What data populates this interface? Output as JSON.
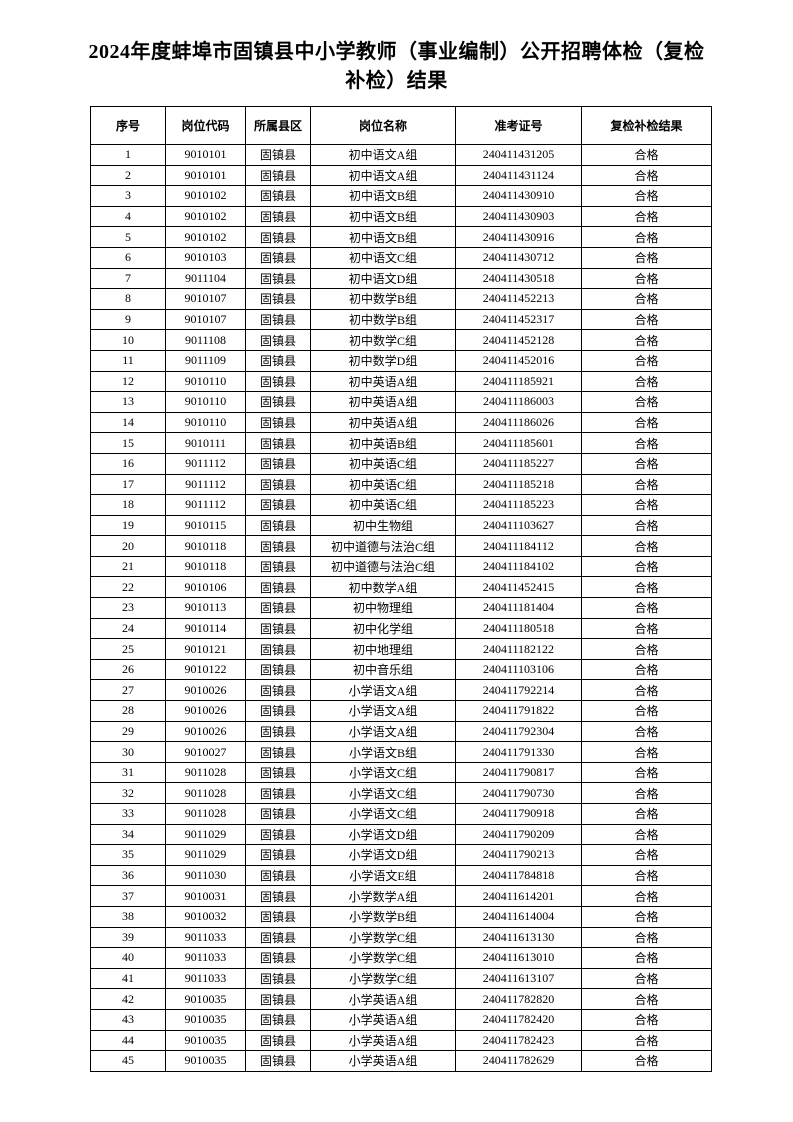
{
  "colors": {
    "background": "#ffffff",
    "text": "#000000",
    "table_border": "#000000"
  },
  "document": {
    "title_line1": "2024年度蚌埠市固镇县中小学教师（事业编制）公开招聘体检（复检",
    "title_line2": "补检）结果"
  },
  "table": {
    "headers": [
      "序号",
      "岗位代码",
      "所属县区",
      "岗位名称",
      "准考证号",
      "复检补检结果"
    ],
    "rows": [
      [
        "1",
        "9010101",
        "固镇县",
        "初中语文A组",
        "240411431205",
        "合格"
      ],
      [
        "2",
        "9010101",
        "固镇县",
        "初中语文A组",
        "240411431124",
        "合格"
      ],
      [
        "3",
        "9010102",
        "固镇县",
        "初中语文B组",
        "240411430910",
        "合格"
      ],
      [
        "4",
        "9010102",
        "固镇县",
        "初中语文B组",
        "240411430903",
        "合格"
      ],
      [
        "5",
        "9010102",
        "固镇县",
        "初中语文B组",
        "240411430916",
        "合格"
      ],
      [
        "6",
        "9010103",
        "固镇县",
        "初中语文C组",
        "240411430712",
        "合格"
      ],
      [
        "7",
        "9011104",
        "固镇县",
        "初中语文D组",
        "240411430518",
        "合格"
      ],
      [
        "8",
        "9010107",
        "固镇县",
        "初中数学B组",
        "240411452213",
        "合格"
      ],
      [
        "9",
        "9010107",
        "固镇县",
        "初中数学B组",
        "240411452317",
        "合格"
      ],
      [
        "10",
        "9011108",
        "固镇县",
        "初中数学C组",
        "240411452128",
        "合格"
      ],
      [
        "11",
        "9011109",
        "固镇县",
        "初中数学D组",
        "240411452016",
        "合格"
      ],
      [
        "12",
        "9010110",
        "固镇县",
        "初中英语A组",
        "240411185921",
        "合格"
      ],
      [
        "13",
        "9010110",
        "固镇县",
        "初中英语A组",
        "240411186003",
        "合格"
      ],
      [
        "14",
        "9010110",
        "固镇县",
        "初中英语A组",
        "240411186026",
        "合格"
      ],
      [
        "15",
        "9010111",
        "固镇县",
        "初中英语B组",
        "240411185601",
        "合格"
      ],
      [
        "16",
        "9011112",
        "固镇县",
        "初中英语C组",
        "240411185227",
        "合格"
      ],
      [
        "17",
        "9011112",
        "固镇县",
        "初中英语C组",
        "240411185218",
        "合格"
      ],
      [
        "18",
        "9011112",
        "固镇县",
        "初中英语C组",
        "240411185223",
        "合格"
      ],
      [
        "19",
        "9010115",
        "固镇县",
        "初中生物组",
        "240411103627",
        "合格"
      ],
      [
        "20",
        "9010118",
        "固镇县",
        "初中道德与法治C组",
        "240411184112",
        "合格"
      ],
      [
        "21",
        "9010118",
        "固镇县",
        "初中道德与法治C组",
        "240411184102",
        "合格"
      ],
      [
        "22",
        "9010106",
        "固镇县",
        "初中数学A组",
        "240411452415",
        "合格"
      ],
      [
        "23",
        "9010113",
        "固镇县",
        "初中物理组",
        "240411181404",
        "合格"
      ],
      [
        "24",
        "9010114",
        "固镇县",
        "初中化学组",
        "240411180518",
        "合格"
      ],
      [
        "25",
        "9010121",
        "固镇县",
        "初中地理组",
        "240411182122",
        "合格"
      ],
      [
        "26",
        "9010122",
        "固镇县",
        "初中音乐组",
        "240411103106",
        "合格"
      ],
      [
        "27",
        "9010026",
        "固镇县",
        "小学语文A组",
        "240411792214",
        "合格"
      ],
      [
        "28",
        "9010026",
        "固镇县",
        "小学语文A组",
        "240411791822",
        "合格"
      ],
      [
        "29",
        "9010026",
        "固镇县",
        "小学语文A组",
        "240411792304",
        "合格"
      ],
      [
        "30",
        "9010027",
        "固镇县",
        "小学语文B组",
        "240411791330",
        "合格"
      ],
      [
        "31",
        "9011028",
        "固镇县",
        "小学语文C组",
        "240411790817",
        "合格"
      ],
      [
        "32",
        "9011028",
        "固镇县",
        "小学语文C组",
        "240411790730",
        "合格"
      ],
      [
        "33",
        "9011028",
        "固镇县",
        "小学语文C组",
        "240411790918",
        "合格"
      ],
      [
        "34",
        "9011029",
        "固镇县",
        "小学语文D组",
        "240411790209",
        "合格"
      ],
      [
        "35",
        "9011029",
        "固镇县",
        "小学语文D组",
        "240411790213",
        "合格"
      ],
      [
        "36",
        "9011030",
        "固镇县",
        "小学语文E组",
        "240411784818",
        "合格"
      ],
      [
        "37",
        "9010031",
        "固镇县",
        "小学数学A组",
        "240411614201",
        "合格"
      ],
      [
        "38",
        "9010032",
        "固镇县",
        "小学数学B组",
        "240411614004",
        "合格"
      ],
      [
        "39",
        "9011033",
        "固镇县",
        "小学数学C组",
        "240411613130",
        "合格"
      ],
      [
        "40",
        "9011033",
        "固镇县",
        "小学数学C组",
        "240411613010",
        "合格"
      ],
      [
        "41",
        "9011033",
        "固镇县",
        "小学数学C组",
        "240411613107",
        "合格"
      ],
      [
        "42",
        "9010035",
        "固镇县",
        "小学英语A组",
        "240411782820",
        "合格"
      ],
      [
        "43",
        "9010035",
        "固镇县",
        "小学英语A组",
        "240411782420",
        "合格"
      ],
      [
        "44",
        "9010035",
        "固镇县",
        "小学英语A组",
        "240411782423",
        "合格"
      ],
      [
        "45",
        "9010035",
        "固镇县",
        "小学英语A组",
        "240411782629",
        "合格"
      ]
    ]
  }
}
